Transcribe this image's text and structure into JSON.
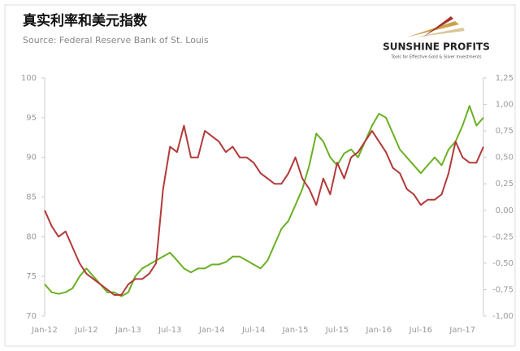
{
  "chart_data": {
    "type": "line",
    "title": "真实利率和美元指数",
    "subtitle": "Source: Federal Reserve Bank of St. Louis",
    "logo": {
      "name": "SUNSHINE PROFITS",
      "tagline": "Tools for Effective Gold & Silver Investments"
    },
    "x": [
      "Jan-12",
      null,
      null,
      null,
      null,
      null,
      "Jul-12",
      null,
      null,
      null,
      null,
      null,
      "Jan-13",
      null,
      null,
      null,
      null,
      null,
      "Jul-13",
      null,
      null,
      null,
      null,
      null,
      "Jan-14",
      null,
      null,
      null,
      null,
      null,
      "Jul-14",
      null,
      null,
      null,
      null,
      null,
      "Jan-15",
      null,
      null,
      null,
      null,
      null,
      "Jul-15",
      null,
      null,
      null,
      null,
      null,
      "Jan-16",
      null,
      null,
      null,
      null,
      null,
      "Jul-16",
      null,
      null,
      null,
      null,
      null,
      "Jan-17",
      null,
      null,
      null
    ],
    "series": [
      {
        "color": "#6ab023",
        "values": [
          74,
          73,
          72.8,
          73,
          73.5,
          75,
          76,
          75,
          74,
          73,
          73,
          72.5,
          73,
          75,
          76,
          76.5,
          77,
          77.5,
          78,
          77,
          76,
          75.5,
          76,
          76,
          76.5,
          76.5,
          76.8,
          77.5,
          77.5,
          77,
          76.5,
          76,
          77,
          79,
          81,
          82,
          84,
          86,
          89,
          93,
          92,
          90,
          89,
          90.5,
          91,
          90,
          92,
          94,
          95.5,
          95,
          93,
          91,
          90,
          89,
          88,
          89,
          90,
          89,
          91,
          92,
          94,
          96.5,
          94,
          95
        ]
      },
      {
        "color": "#b33a3a",
        "axis": "y2",
        "values": [
          0.0,
          -0.15,
          -0.25,
          -0.2,
          -0.35,
          -0.5,
          -0.6,
          -0.65,
          -0.7,
          -0.75,
          -0.8,
          -0.8,
          -0.7,
          -0.65,
          -0.65,
          -0.6,
          -0.5,
          0.2,
          0.6,
          0.55,
          0.8,
          0.5,
          0.5,
          0.75,
          0.7,
          0.65,
          0.55,
          0.6,
          0.5,
          0.5,
          0.45,
          0.35,
          0.3,
          0.25,
          0.25,
          0.35,
          0.5,
          0.3,
          0.2,
          0.05,
          0.3,
          0.15,
          0.45,
          0.3,
          0.5,
          0.55,
          0.65,
          0.75,
          0.65,
          0.55,
          0.4,
          0.35,
          0.2,
          0.15,
          0.05,
          0.1,
          0.1,
          0.15,
          0.35,
          0.65,
          0.5,
          0.45,
          0.45,
          0.6
        ]
      }
    ],
    "ylim": [
      70,
      100
    ],
    "yticks": [
      70,
      75,
      80,
      85,
      90,
      95,
      100
    ],
    "y2lim": [
      -1,
      1.25
    ],
    "y2ticks": [
      {
        "value": -1,
        "label": "-1,00"
      },
      {
        "value": -0.75,
        "label": "-0,75"
      },
      {
        "value": -0.5,
        "label": "-0,50"
      },
      {
        "value": -0.25,
        "label": "-0,25"
      },
      {
        "value": 0,
        "label": "0,00"
      },
      {
        "value": 0.25,
        "label": "0,25"
      },
      {
        "value": 0.5,
        "label": "0,50"
      },
      {
        "value": 0.75,
        "label": "0,75"
      },
      {
        "value": 1,
        "label": "1,00"
      },
      {
        "value": 1.25,
        "label": "1,25"
      }
    ],
    "grid": false
  }
}
